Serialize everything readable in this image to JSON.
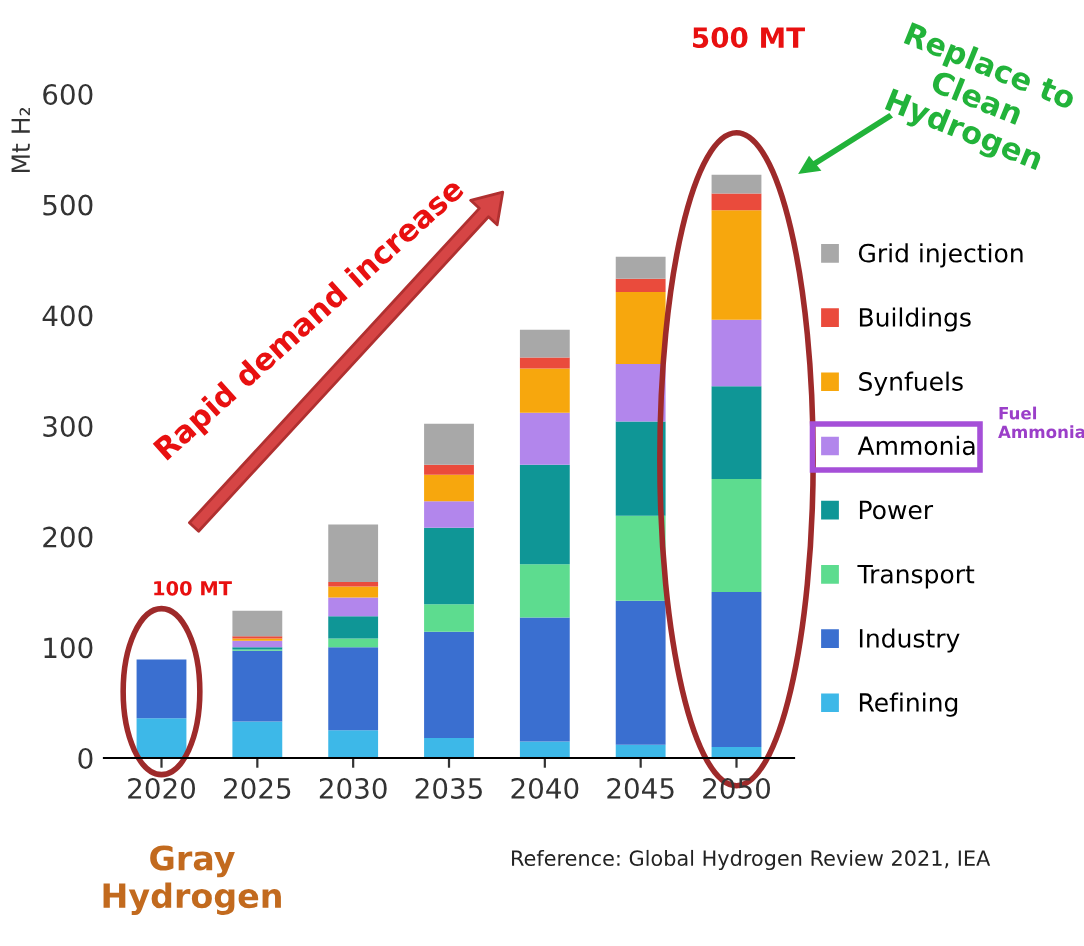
{
  "chart_data": {
    "type": "bar",
    "stacked": true,
    "ylabel": "Mt H₂",
    "categories": [
      "2020",
      "2025",
      "2030",
      "2035",
      "2040",
      "2045",
      "2050"
    ],
    "series": [
      {
        "name": "Refining",
        "color": "#3db8e8",
        "values": [
          36,
          33,
          25,
          18,
          15,
          12,
          10
        ]
      },
      {
        "name": "Industry",
        "color": "#3a6fd0",
        "values": [
          53,
          64,
          75,
          96,
          112,
          130,
          140
        ]
      },
      {
        "name": "Transport",
        "color": "#5ddc8f",
        "values": [
          0,
          1,
          8,
          25,
          48,
          77,
          102
        ]
      },
      {
        "name": "Power",
        "color": "#0f9696",
        "values": [
          0,
          2,
          20,
          69,
          90,
          85,
          84
        ]
      },
      {
        "name": "Ammonia",
        "color": "#b286ec",
        "values": [
          0,
          6,
          17,
          24,
          47,
          52,
          60
        ]
      },
      {
        "name": "Synfuels",
        "color": "#f7a70d",
        "values": [
          0,
          2,
          10,
          24,
          40,
          65,
          99
        ]
      },
      {
        "name": "Buildings",
        "color": "#ea4b3c",
        "values": [
          0,
          2,
          4,
          9,
          10,
          12,
          15
        ]
      },
      {
        "name": "Grid injection",
        "color": "#a8a8a8",
        "values": [
          null,
          23,
          52,
          37,
          25,
          20,
          17
        ]
      }
    ],
    "ylim": [
      0,
      600
    ],
    "yticks": [
      0,
      100,
      200,
      300,
      400,
      500,
      600
    ],
    "grid": false,
    "legend": "right",
    "annotations": [
      "Rapid demand increase",
      "100 MT",
      "500 MT",
      "Replace to\nClean\nHydrogen",
      "Fuel\nAmmonia",
      "Gray\nHydrogen",
      "Reference: Global Hydrogen Review 2021, IEA"
    ]
  }
}
